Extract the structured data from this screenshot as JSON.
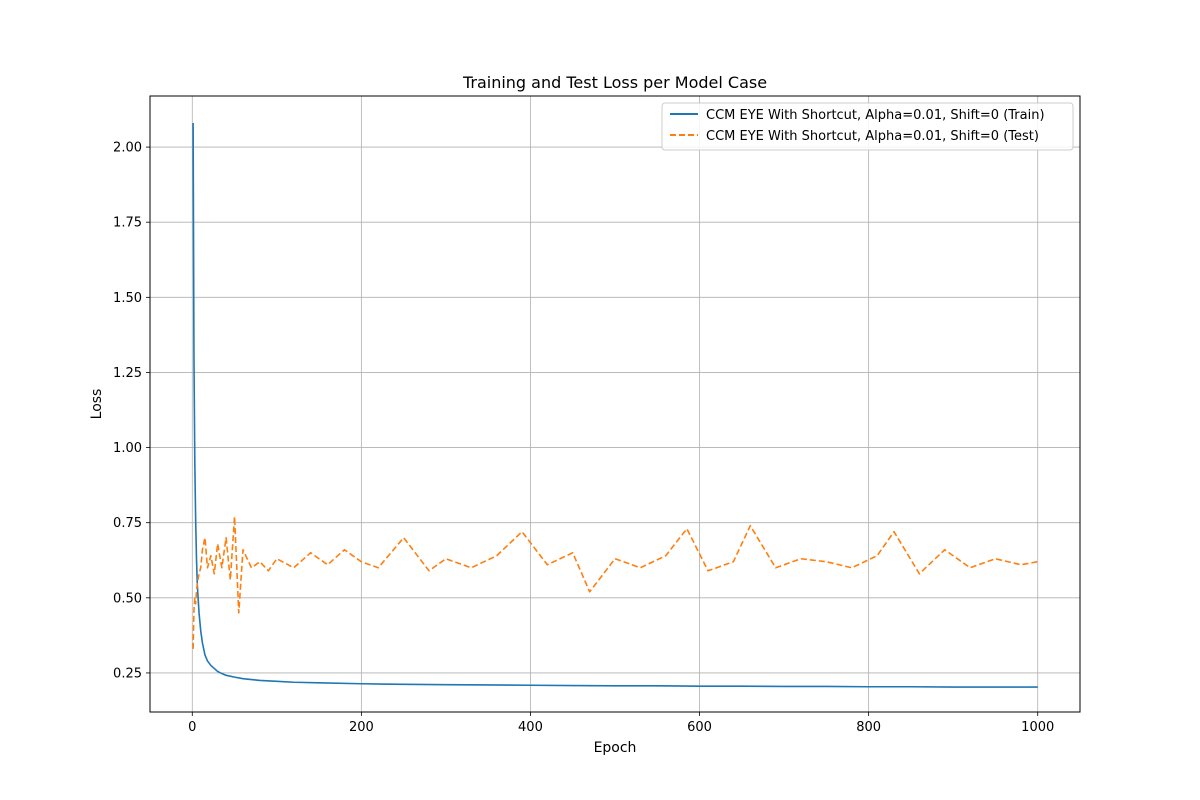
{
  "chart_data": {
    "type": "line",
    "title": "Training and Test Loss per Model Case",
    "xlabel": "Epoch",
    "ylabel": "Loss",
    "xlim": [
      -50,
      1050
    ],
    "ylim": [
      0.12,
      2.17
    ],
    "xticks": [
      0,
      200,
      400,
      600,
      800,
      1000
    ],
    "xtick_labels": [
      "0",
      "200",
      "400",
      "600",
      "800",
      "1000"
    ],
    "yticks": [
      0.25,
      0.5,
      0.75,
      1.0,
      1.25,
      1.5,
      1.75,
      2.0
    ],
    "ytick_labels": [
      "0.25",
      "0.50",
      "0.75",
      "1.00",
      "1.25",
      "1.50",
      "1.75",
      "2.00"
    ],
    "grid": true,
    "legend_position": "top-right",
    "series": [
      {
        "name": "CCM EYE With Shortcut, Alpha=0.01, Shift=0 (Train)",
        "color": "#1f77b4",
        "style": "solid",
        "x": [
          1,
          2,
          3,
          4,
          5,
          6,
          8,
          10,
          12,
          15,
          18,
          22,
          26,
          30,
          35,
          40,
          50,
          60,
          70,
          80,
          100,
          120,
          150,
          200,
          250,
          300,
          350,
          400,
          450,
          500,
          550,
          600,
          650,
          700,
          750,
          800,
          850,
          900,
          950,
          1000
        ],
        "y": [
          2.08,
          1.3,
          0.95,
          0.76,
          0.63,
          0.54,
          0.45,
          0.39,
          0.35,
          0.31,
          0.29,
          0.275,
          0.265,
          0.255,
          0.248,
          0.242,
          0.236,
          0.231,
          0.228,
          0.225,
          0.222,
          0.219,
          0.217,
          0.214,
          0.212,
          0.211,
          0.21,
          0.209,
          0.208,
          0.207,
          0.207,
          0.206,
          0.206,
          0.205,
          0.205,
          0.204,
          0.204,
          0.203,
          0.203,
          0.203
        ]
      },
      {
        "name": "CCM EYE With Shortcut, Alpha=0.01, Shift=0 (Test)",
        "color": "#ff7f0e",
        "style": "dashed",
        "x": [
          1,
          2,
          3,
          4,
          5,
          6,
          8,
          10,
          12,
          15,
          18,
          22,
          26,
          30,
          35,
          40,
          45,
          50,
          55,
          60,
          70,
          80,
          90,
          100,
          120,
          140,
          160,
          180,
          200,
          220,
          250,
          280,
          300,
          330,
          360,
          390,
          420,
          450,
          470,
          500,
          530,
          560,
          585,
          610,
          640,
          660,
          690,
          720,
          750,
          780,
          810,
          830,
          860,
          890,
          920,
          950,
          980,
          1000
        ],
        "y": [
          0.33,
          0.46,
          0.5,
          0.48,
          0.52,
          0.55,
          0.58,
          0.6,
          0.66,
          0.7,
          0.6,
          0.64,
          0.58,
          0.68,
          0.6,
          0.7,
          0.56,
          0.77,
          0.45,
          0.66,
          0.6,
          0.62,
          0.59,
          0.63,
          0.6,
          0.65,
          0.61,
          0.66,
          0.62,
          0.6,
          0.7,
          0.59,
          0.63,
          0.6,
          0.64,
          0.72,
          0.61,
          0.65,
          0.52,
          0.63,
          0.6,
          0.64,
          0.73,
          0.59,
          0.62,
          0.74,
          0.6,
          0.63,
          0.62,
          0.6,
          0.64,
          0.72,
          0.58,
          0.66,
          0.6,
          0.63,
          0.61,
          0.62
        ]
      }
    ]
  }
}
